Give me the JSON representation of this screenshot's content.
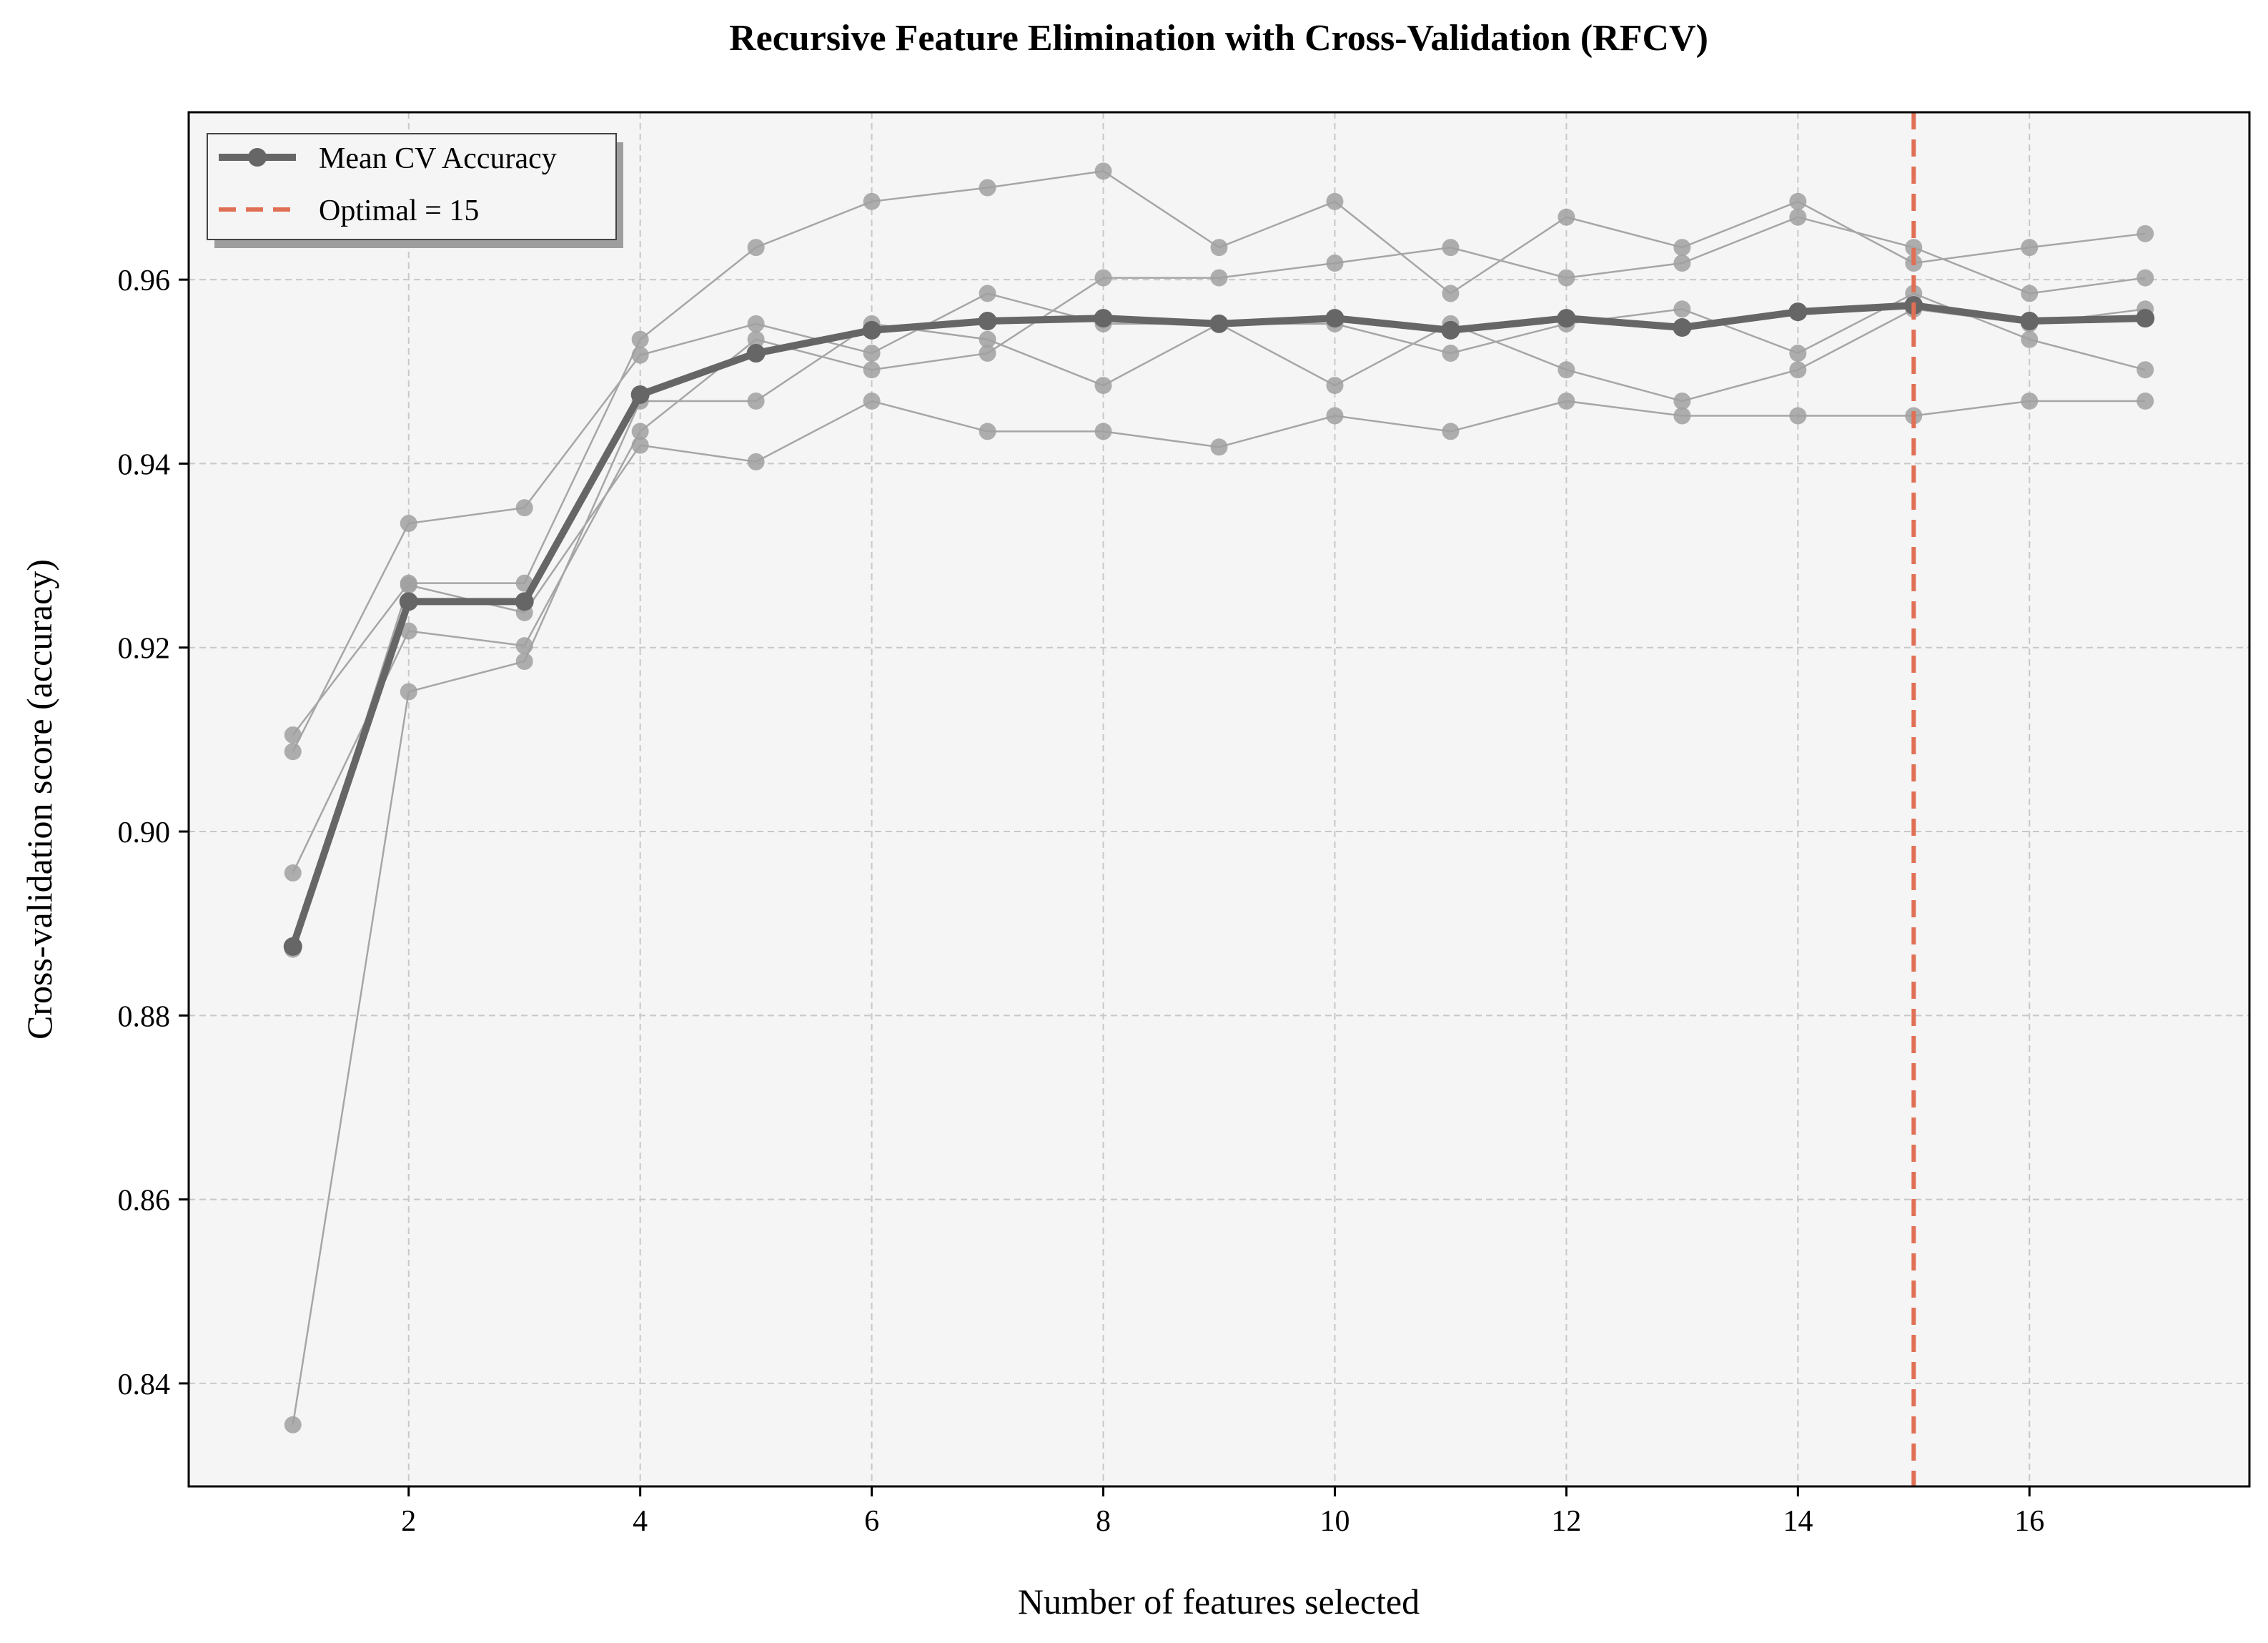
{
  "chart_data": {
    "type": "line",
    "title": "Recursive Feature Elimination with Cross-Validation (RFCV)",
    "xlabel": "Number of features selected",
    "ylabel": "Cross-validation score (accuracy)",
    "xlim": [
      0.1,
      17.9
    ],
    "ylim": [
      0.8288,
      0.9782
    ],
    "xticks": [
      2,
      4,
      6,
      8,
      10,
      12,
      14,
      16
    ],
    "yticks": [
      0.84,
      0.86,
      0.88,
      0.9,
      0.92,
      0.94,
      0.96
    ],
    "grid": true,
    "legend_position": "top-left",
    "x": [
      1,
      2,
      3,
      4,
      5,
      6,
      7,
      8,
      9,
      10,
      11,
      12,
      13,
      14,
      15,
      16,
      17
    ],
    "mean_series": {
      "name": "Mean CV Accuracy",
      "color": "#666666",
      "values": [
        0.8875,
        0.925,
        0.925,
        0.9475,
        0.952,
        0.9545,
        0.9555,
        0.9558,
        0.9552,
        0.9558,
        0.9545,
        0.9558,
        0.9548,
        0.9565,
        0.9572,
        0.9555,
        0.9558
      ]
    },
    "fold_series": [
      {
        "values": [
          0.9105,
          0.927,
          0.927,
          0.9535,
          0.9635,
          0.9685,
          0.97,
          0.9718,
          0.9635,
          0.9685,
          0.9585,
          0.9668,
          0.9635,
          0.9685,
          0.9618,
          0.9635,
          0.965
        ]
      },
      {
        "values": [
          0.9087,
          0.9335,
          0.9352,
          0.9518,
          0.9552,
          0.952,
          0.9585,
          0.9552,
          0.9552,
          0.9552,
          0.952,
          0.9552,
          0.9568,
          0.952,
          0.9585,
          0.9535,
          0.9502
        ]
      },
      {
        "values": [
          0.8955,
          0.9218,
          0.9202,
          0.9435,
          0.9535,
          0.9502,
          0.952,
          0.9602,
          0.9602,
          0.9618,
          0.9635,
          0.9602,
          0.9618,
          0.9668,
          0.9635,
          0.9585,
          0.9602
        ]
      },
      {
        "values": [
          0.8872,
          0.9268,
          0.9238,
          0.942,
          0.9402,
          0.9468,
          0.9435,
          0.9435,
          0.9418,
          0.9452,
          0.9435,
          0.9468,
          0.9452,
          0.9452,
          0.9452,
          0.9468,
          0.9468
        ]
      },
      {
        "values": [
          0.8355,
          0.9152,
          0.9185,
          0.9468,
          0.9468,
          0.9552,
          0.9535,
          0.9485,
          0.9552,
          0.9485,
          0.9552,
          0.9502,
          0.9468,
          0.9502,
          0.9568,
          0.9552,
          0.9568
        ]
      }
    ],
    "optimal": {
      "x": 15,
      "label": "Optimal = 15",
      "color": "#E07055"
    },
    "colors": {
      "plot_background": "#F5F5F5",
      "grid": "#C8C8C8",
      "fold_line": "#A6A6A6",
      "fold_marker": "#A0A0A0"
    }
  }
}
